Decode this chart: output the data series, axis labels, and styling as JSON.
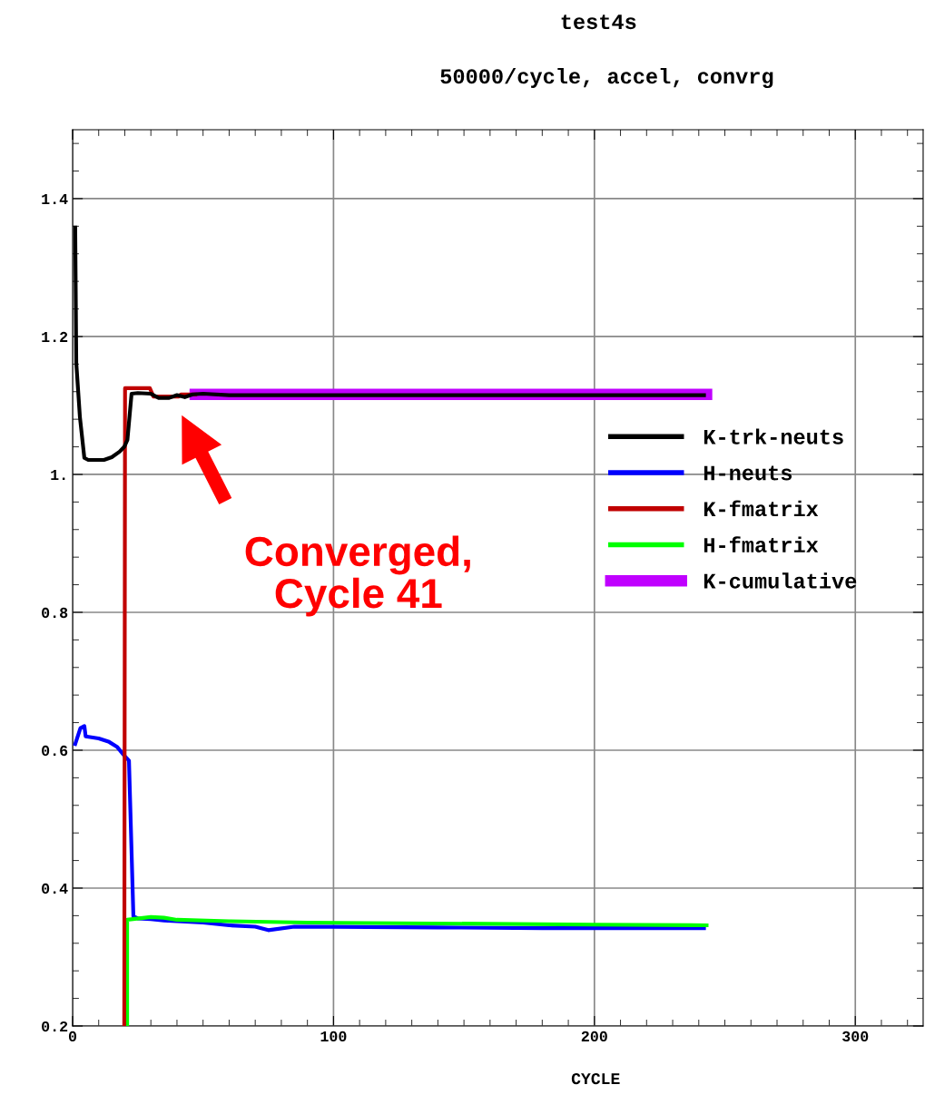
{
  "chart_data": {
    "type": "line",
    "title": "test4s",
    "subtitle": "50000/cycle, accel, convrg",
    "xlabel": "CYCLE",
    "xlim": [
      0,
      326
    ],
    "ylim": [
      0.2,
      1.5
    ],
    "xticks": [
      0,
      {
        "value": 10,
        "label": null
      },
      {
        "value": 20,
        "label": null
      },
      {
        "value": 30,
        "label": null
      },
      {
        "value": 40,
        "label": null
      },
      {
        "value": 50,
        "label": null
      },
      {
        "value": 60,
        "label": null
      },
      {
        "value": 70,
        "label": null
      },
      {
        "value": 80,
        "label": null
      },
      {
        "value": 90,
        "label": null
      },
      100,
      {
        "value": 110,
        "label": null
      },
      {
        "value": 120,
        "label": null
      },
      {
        "value": 130,
        "label": null
      },
      {
        "value": 140,
        "label": null
      },
      {
        "value": 150,
        "label": null
      },
      {
        "value": 160,
        "label": null
      },
      {
        "value": 170,
        "label": null
      },
      {
        "value": 180,
        "label": null
      },
      {
        "value": 190,
        "label": null
      },
      200,
      {
        "value": 210,
        "label": null
      },
      {
        "value": 220,
        "label": null
      },
      {
        "value": 230,
        "label": null
      },
      {
        "value": 240,
        "label": null
      },
      {
        "value": 250,
        "label": null
      },
      {
        "value": 260,
        "label": null
      },
      {
        "value": 270,
        "label": null
      },
      {
        "value": 280,
        "label": null
      },
      {
        "value": 290,
        "label": null
      },
      300,
      {
        "value": 310,
        "label": null
      },
      {
        "value": 320,
        "label": null
      }
    ],
    "yticks": [
      0.2,
      {
        "value": 0.24,
        "label": null
      },
      {
        "value": 0.28,
        "label": null
      },
      {
        "value": 0.32,
        "label": null
      },
      {
        "value": 0.36,
        "label": null
      },
      0.4,
      {
        "value": 0.44,
        "label": null
      },
      {
        "value": 0.48,
        "label": null
      },
      {
        "value": 0.52,
        "label": null
      },
      {
        "value": 0.56,
        "label": null
      },
      0.6,
      {
        "value": 0.64,
        "label": null
      },
      {
        "value": 0.68,
        "label": null
      },
      {
        "value": 0.72,
        "label": null
      },
      {
        "value": 0.76,
        "label": null
      },
      0.8,
      {
        "value": 0.84,
        "label": null
      },
      {
        "value": 0.88,
        "label": null
      },
      {
        "value": 0.92,
        "label": null
      },
      {
        "value": 0.96,
        "label": null
      },
      {
        "value": 1.0,
        "label": "1."
      },
      {
        "value": 1.04,
        "label": null
      },
      {
        "value": 1.08,
        "label": null
      },
      {
        "value": 1.12,
        "label": null
      },
      {
        "value": 1.16,
        "label": null
      },
      1.2,
      {
        "value": 1.24,
        "label": null
      },
      {
        "value": 1.28,
        "label": null
      },
      {
        "value": 1.32,
        "label": null
      },
      {
        "value": 1.36,
        "label": null
      },
      1.4,
      {
        "value": 1.44,
        "label": null
      },
      {
        "value": 1.48,
        "label": null
      }
    ],
    "grid": true,
    "legend": "right",
    "marker": "none",
    "line_style": "solid",
    "series": [
      {
        "name": "K-cumulative",
        "color": "#c000ff",
        "x": [
          47,
          60,
          80,
          100,
          120,
          140,
          160,
          180,
          200,
          220,
          243
        ],
        "values": [
          1.116,
          1.116,
          1.116,
          1.116,
          1.116,
          1.116,
          1.116,
          1.116,
          1.116,
          1.116,
          1.116
        ]
      },
      {
        "name": "K-trk-neuts",
        "color": "#000000",
        "x": [
          1,
          1.4,
          2.8,
          4.5,
          6,
          8,
          12,
          15,
          18,
          19.8,
          21,
          22.6,
          25,
          30,
          33,
          37,
          40,
          43,
          46,
          50,
          60,
          80,
          100,
          140,
          180,
          220,
          242
        ],
        "values": [
          1.358,
          1.162,
          1.083,
          1.024,
          1.021,
          1.021,
          1.021,
          1.025,
          1.033,
          1.04,
          1.05,
          1.117,
          1.118,
          1.117,
          1.111,
          1.111,
          1.115,
          1.112,
          1.116,
          1.117,
          1.115,
          1.115,
          1.115,
          1.115,
          1.115,
          1.115,
          1.115
        ]
      },
      {
        "name": "H-neuts",
        "color": "#0000ff",
        "x": [
          1,
          3,
          4.5,
          5,
          10,
          14,
          17,
          19.8,
          21.6,
          23.3,
          25,
          30,
          35,
          50,
          60,
          70,
          75,
          85,
          100,
          140,
          180,
          220,
          242
        ],
        "values": [
          0.609,
          0.632,
          0.635,
          0.62,
          0.617,
          0.612,
          0.605,
          0.592,
          0.585,
          0.359,
          0.356,
          0.355,
          0.353,
          0.35,
          0.346,
          0.344,
          0.339,
          0.344,
          0.344,
          0.343,
          0.342,
          0.342,
          0.342
        ]
      },
      {
        "name": "K-fmatrix",
        "color": "#c00000",
        "x": [
          19.8,
          20.1,
          29.6,
          31,
          40.7,
          41.5,
          47
        ],
        "values": [
          0.2,
          1.125,
          1.125,
          1.113,
          1.113,
          1.116,
          1.116
        ]
      },
      {
        "name": "H-fmatrix",
        "color": "#00ff00",
        "x": [
          20.9,
          20.9,
          30,
          35,
          40,
          60,
          90,
          200,
          243
        ],
        "values": [
          0.2,
          0.354,
          0.358,
          0.357,
          0.354,
          0.352,
          0.35,
          0.347,
          0.346
        ]
      }
    ],
    "annotations": [
      "Converged,\nCycle 41"
    ]
  }
}
